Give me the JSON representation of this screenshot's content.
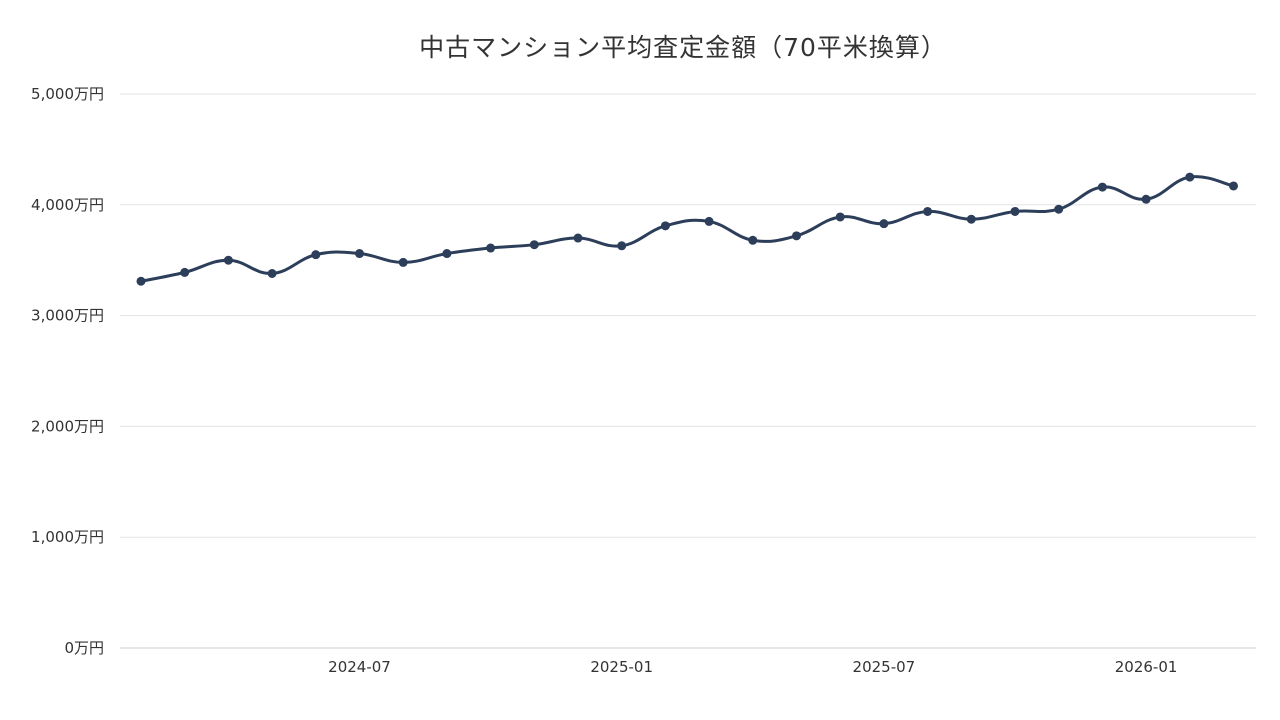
{
  "chart_data": {
    "type": "line",
    "title": "中古マンション平均査定金額（70平米換算）",
    "xlabel": "",
    "ylabel": "",
    "ylim": [
      0,
      5000
    ],
    "y_ticks": [
      "0万円",
      "1,000万円",
      "2,000万円",
      "3,000万円",
      "4,000万円",
      "5,000万円"
    ],
    "y_tick_values": [
      0,
      1000,
      2000,
      3000,
      4000,
      5000
    ],
    "x_ticks": [
      "2024-07",
      "2025-01",
      "2025-07",
      "2026-01"
    ],
    "x": [
      "2024-02",
      "2024-03",
      "2024-04",
      "2024-05",
      "2024-06",
      "2024-07",
      "2024-08",
      "2024-09",
      "2024-10",
      "2024-11",
      "2024-12",
      "2025-01",
      "2025-02",
      "2025-03",
      "2025-04",
      "2025-05",
      "2025-06",
      "2025-07",
      "2025-08",
      "2025-09",
      "2025-10",
      "2025-11",
      "2025-12",
      "2026-01",
      "2026-02",
      "2026-03"
    ],
    "series": [
      {
        "values": [
          3310,
          3390,
          3500,
          3380,
          3550,
          3560,
          3480,
          3560,
          3610,
          3640,
          3700,
          3630,
          3810,
          3850,
          3680,
          3720,
          3890,
          3830,
          3940,
          3870,
          3940,
          3960,
          4160,
          4050,
          4250,
          4170
        ]
      }
    ],
    "grid": true,
    "legend": "none",
    "colors": {
      "line": "#2c3e5a",
      "grid": "#e3e3e3",
      "text": "#333333"
    }
  }
}
